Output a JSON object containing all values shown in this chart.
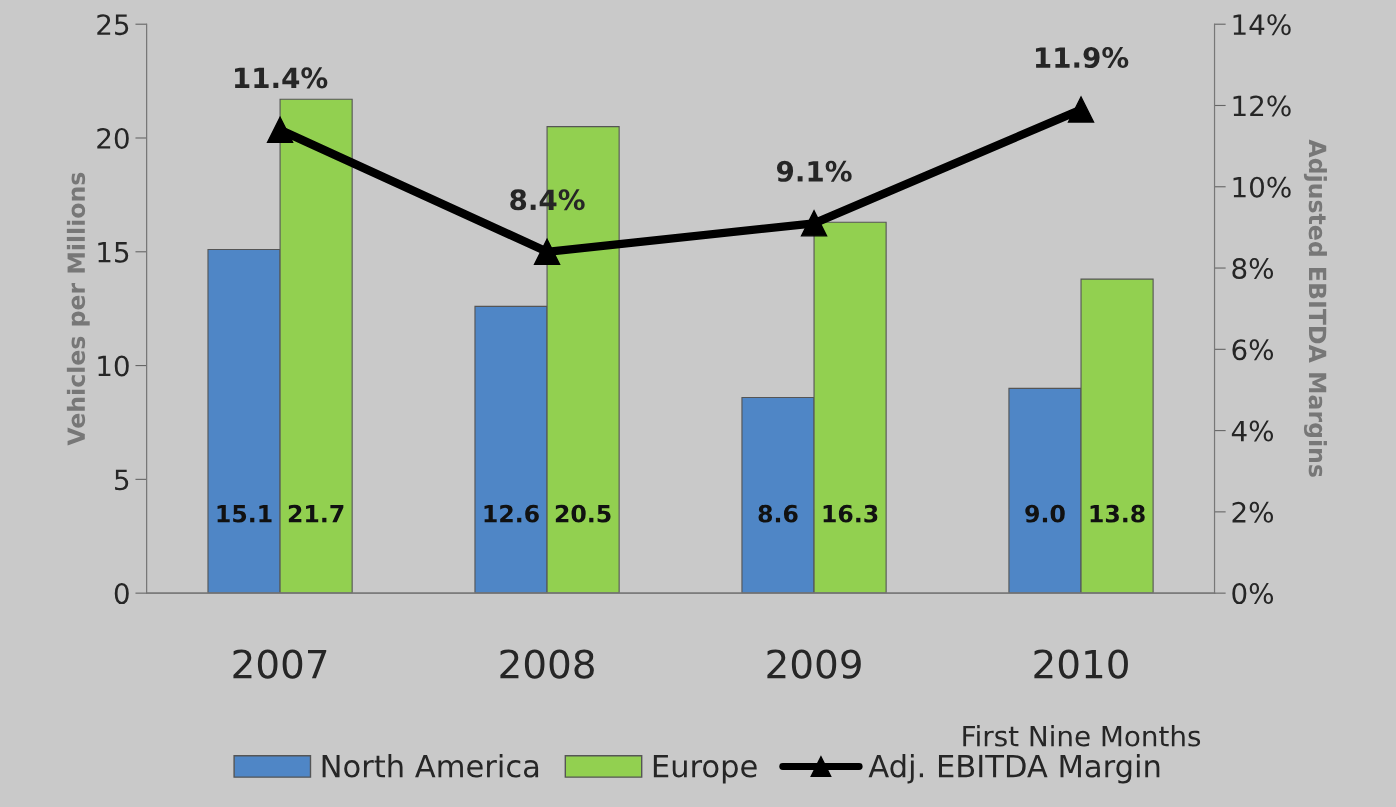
{
  "chart_data": {
    "type": "bar",
    "ylabel": "Vehicles per Millions",
    "y2label": "Adjusted EBITDA Margins",
    "categories": [
      "2007",
      "2008",
      "2009",
      "2010"
    ],
    "series": [
      {
        "name": "North America",
        "color": "#4f86c6",
        "values": [
          15.1,
          12.6,
          8.6,
          9.0
        ],
        "value_labels": [
          "15.1",
          "12.6",
          "8.6",
          "9.0"
        ]
      },
      {
        "name": "Europe",
        "color": "#92d050",
        "values": [
          21.7,
          20.5,
          16.3,
          13.8
        ],
        "value_labels": [
          "21.7",
          "20.5",
          "16.3",
          "13.8"
        ]
      },
      {
        "name": "Adj. EBITDA Margin",
        "type": "line",
        "axis": "y2",
        "color": "#000000",
        "marker": "triangle",
        "line_style": "solid",
        "values": [
          11.4,
          8.4,
          9.1,
          11.9
        ],
        "value_labels": [
          "11.4%",
          "8.4%",
          "9.1%",
          "11.9%"
        ]
      }
    ],
    "ylim": [
      0,
      25
    ],
    "yticks": [
      0,
      5,
      10,
      15,
      20,
      25
    ],
    "y2lim": [
      0,
      14
    ],
    "y2ticks": [
      {
        "value": 0,
        "label": "0%"
      },
      {
        "value": 2,
        "label": "2%"
      },
      {
        "value": 4,
        "label": "4%"
      },
      {
        "value": 6,
        "label": "6%"
      },
      {
        "value": 8,
        "label": "8%"
      },
      {
        "value": 10,
        "label": "10%"
      },
      {
        "value": 12,
        "label": "12%"
      },
      {
        "value": 14,
        "label": "14%"
      }
    ],
    "data_labels": true,
    "legend": "bottom",
    "annotations": [
      "First Nine Months"
    ]
  }
}
